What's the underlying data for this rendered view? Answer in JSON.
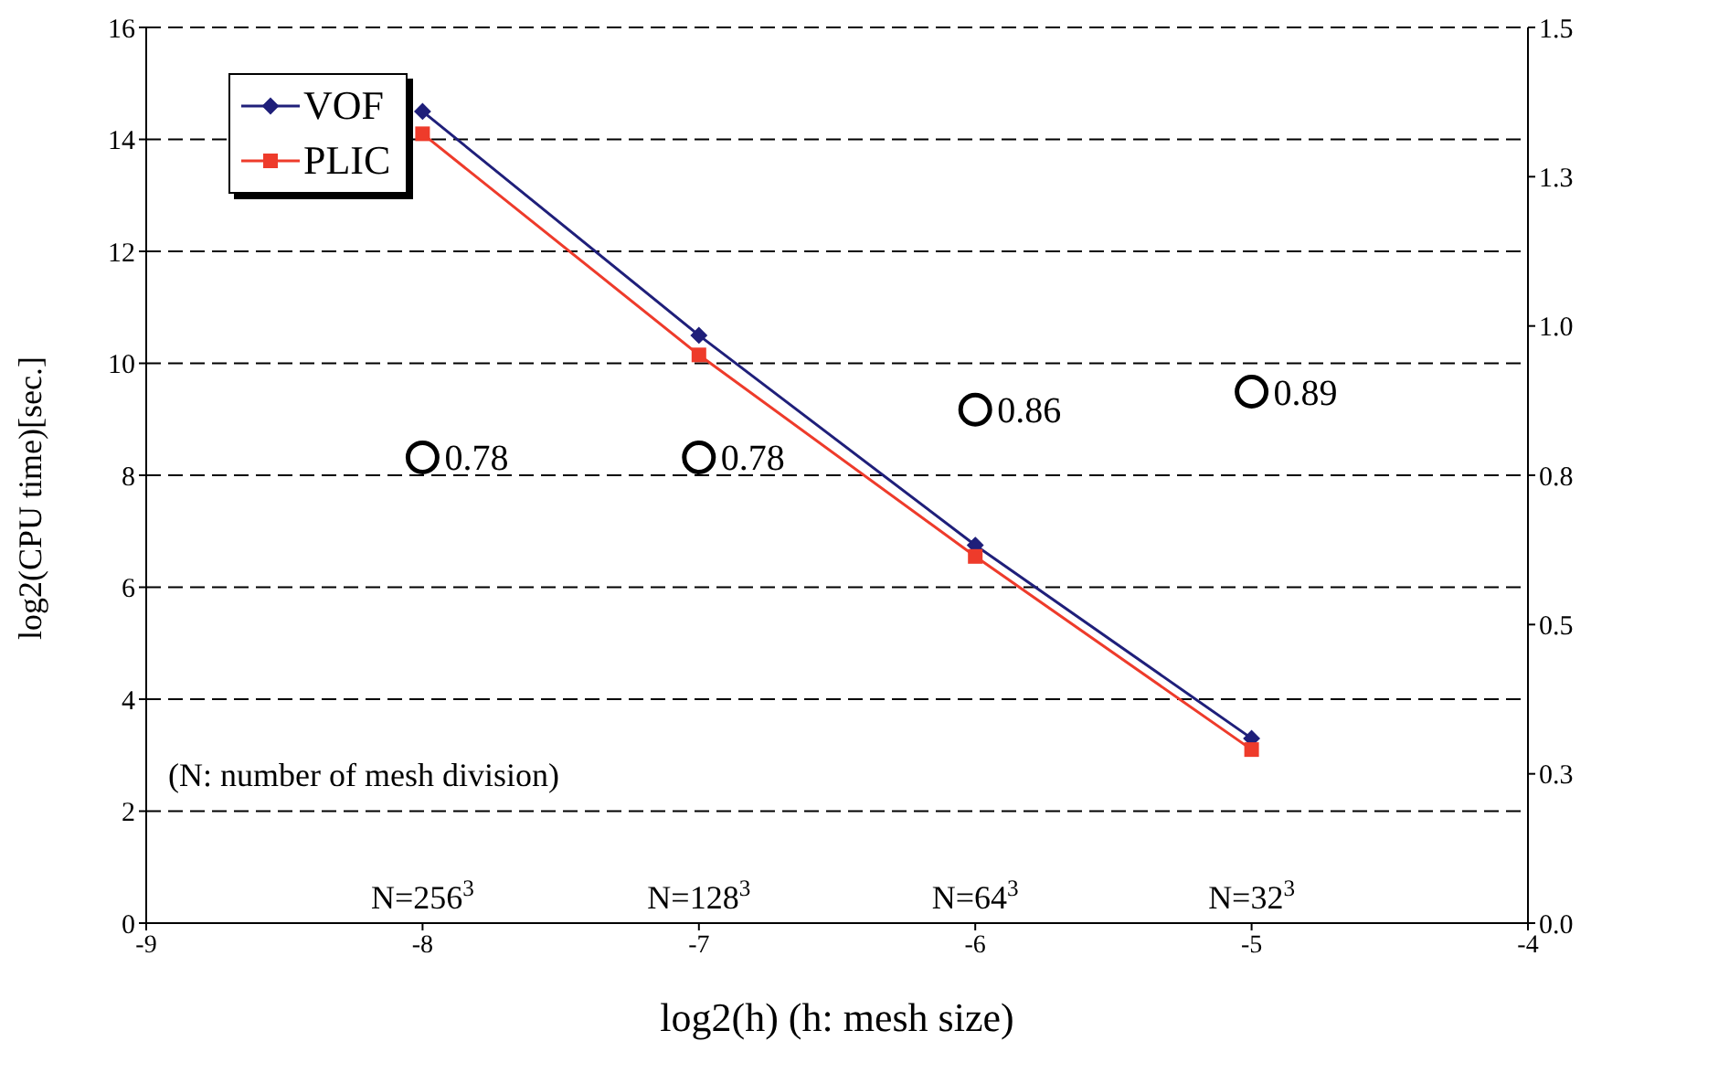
{
  "chart_data": {
    "type": "line",
    "xlabel": "log2(h)   (h: mesh size)",
    "ylabel": "log2(CPU time)[sec.]",
    "x": [
      -8,
      -7,
      -6,
      -5
    ],
    "series": [
      {
        "name": "VOF",
        "color": "#1f1f7a",
        "marker": "diamond",
        "values": [
          14.5,
          10.5,
          6.75,
          3.3
        ]
      },
      {
        "name": "PLIC",
        "color": "#ee3b2b",
        "marker": "square",
        "values": [
          14.1,
          10.15,
          6.55,
          3.1
        ]
      },
      {
        "type": "scatter",
        "axis": "y2",
        "color": "#000000",
        "marker": "circle",
        "values": [
          0.78,
          0.78,
          0.86,
          0.89
        ],
        "value_labels": [
          "0.78",
          "0.78",
          "0.86",
          "0.89"
        ]
      }
    ],
    "xlim": [
      -9,
      -4
    ],
    "xticks": [
      -9,
      -8,
      -7,
      -6,
      -5,
      -4
    ],
    "ylim": [
      0,
      16
    ],
    "yticks": [
      0,
      2,
      4,
      6,
      8,
      10,
      12,
      14,
      16
    ],
    "y2lim": [
      0,
      1.5
    ],
    "y2ticks": [
      {
        "value": 0,
        "label": "0.0"
      },
      {
        "value": 0.25,
        "label": "0.3"
      },
      {
        "value": 0.5,
        "label": "0.5"
      },
      {
        "value": 0.75,
        "label": "0.8"
      },
      {
        "value": 1,
        "label": "1.0"
      },
      {
        "value": 1.25,
        "label": "1.3"
      },
      {
        "value": 1.5,
        "label": "1.5"
      }
    ],
    "grid": "y",
    "legend": "top left",
    "line_style": "solid",
    "annotations": [
      "(N: number of mesh division)",
      "N=256$^{3}$",
      "N=128$^{3}$",
      "N=64$^{3}$",
      "N=32$^{3}$"
    ]
  }
}
